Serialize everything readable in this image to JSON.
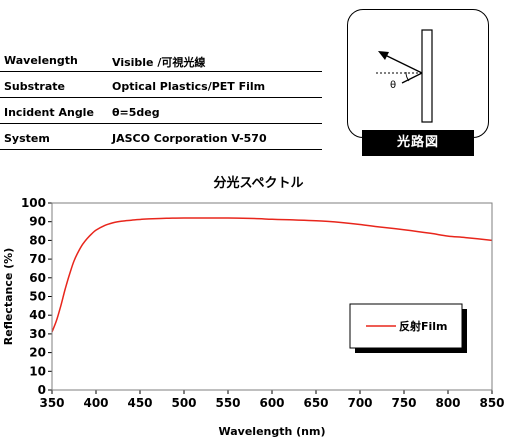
{
  "spec": {
    "rows": [
      {
        "label": "Wavelength",
        "value": "Visible /可視光線"
      },
      {
        "label": "Substrate",
        "value": "Optical Plastics/PET Film"
      },
      {
        "label": "Incident Angle",
        "value": "θ=5deg"
      },
      {
        "label": "System",
        "value": "JASCO Corporation  V-570"
      }
    ]
  },
  "optical_path": {
    "label": "光路図",
    "angle_symbol": "θ"
  },
  "colors": {
    "series": "#e8261c",
    "plot_bg": "#ffffff",
    "frame": "#7f7f7f"
  },
  "chart_data": {
    "type": "line",
    "title": "分光スペクトル",
    "xlabel": "Wavelength (nm)",
    "ylabel": "Reflectance (%)",
    "xlim": [
      350,
      850
    ],
    "ylim": [
      0,
      100
    ],
    "xticks": [
      350,
      400,
      450,
      500,
      550,
      600,
      650,
      700,
      750,
      800,
      850
    ],
    "yticks": [
      0,
      10,
      20,
      30,
      40,
      50,
      60,
      70,
      80,
      90,
      100
    ],
    "grid": false,
    "legend_position": "center-right",
    "series": [
      {
        "name": "反射Film",
        "x": [
          350,
          355,
          360,
          365,
          370,
          375,
          380,
          385,
          390,
          395,
          400,
          410,
          420,
          430,
          440,
          450,
          460,
          480,
          500,
          520,
          550,
          580,
          600,
          620,
          650,
          680,
          700,
          720,
          750,
          780,
          800,
          820,
          850
        ],
        "y": [
          31,
          37,
          45,
          54,
          62,
          69,
          74,
          78,
          81,
          83.5,
          85.5,
          88,
          89.5,
          90.3,
          90.8,
          91.2,
          91.5,
          91.8,
          92,
          92,
          92,
          91.7,
          91.3,
          91,
          90.5,
          89.5,
          88.5,
          87.3,
          85.7,
          83.8,
          82.3,
          81.5,
          80
        ]
      }
    ]
  }
}
